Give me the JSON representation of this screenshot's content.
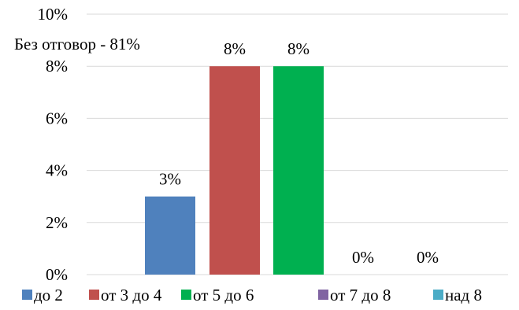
{
  "chart_data": {
    "type": "bar",
    "title": "",
    "xlabel": "",
    "ylabel": "",
    "ylim": [
      0,
      10
    ],
    "yticks": [
      "0%",
      "2%",
      "4%",
      "6%",
      "8%",
      "10%"
    ],
    "ytick_values": [
      0,
      2,
      4,
      6,
      8,
      10
    ],
    "grid": true,
    "legend_position": "bottom",
    "series": [
      {
        "name": "до 2",
        "value": 3,
        "label": "3%",
        "color": "#4F81BD"
      },
      {
        "name": "от 3 до 4",
        "value": 8,
        "label": "8%",
        "color": "#C0504D"
      },
      {
        "name": "от 5 до 6",
        "value": 8,
        "label": "8%",
        "color": "#00B050"
      },
      {
        "name": "от 7 до 8",
        "value": 0,
        "label": "0%",
        "color": "#8064A2"
      },
      {
        "name": "над 8",
        "value": 0,
        "label": "0%",
        "color": "#4BACC6"
      }
    ],
    "annotation": "Без отговор - 81%"
  }
}
